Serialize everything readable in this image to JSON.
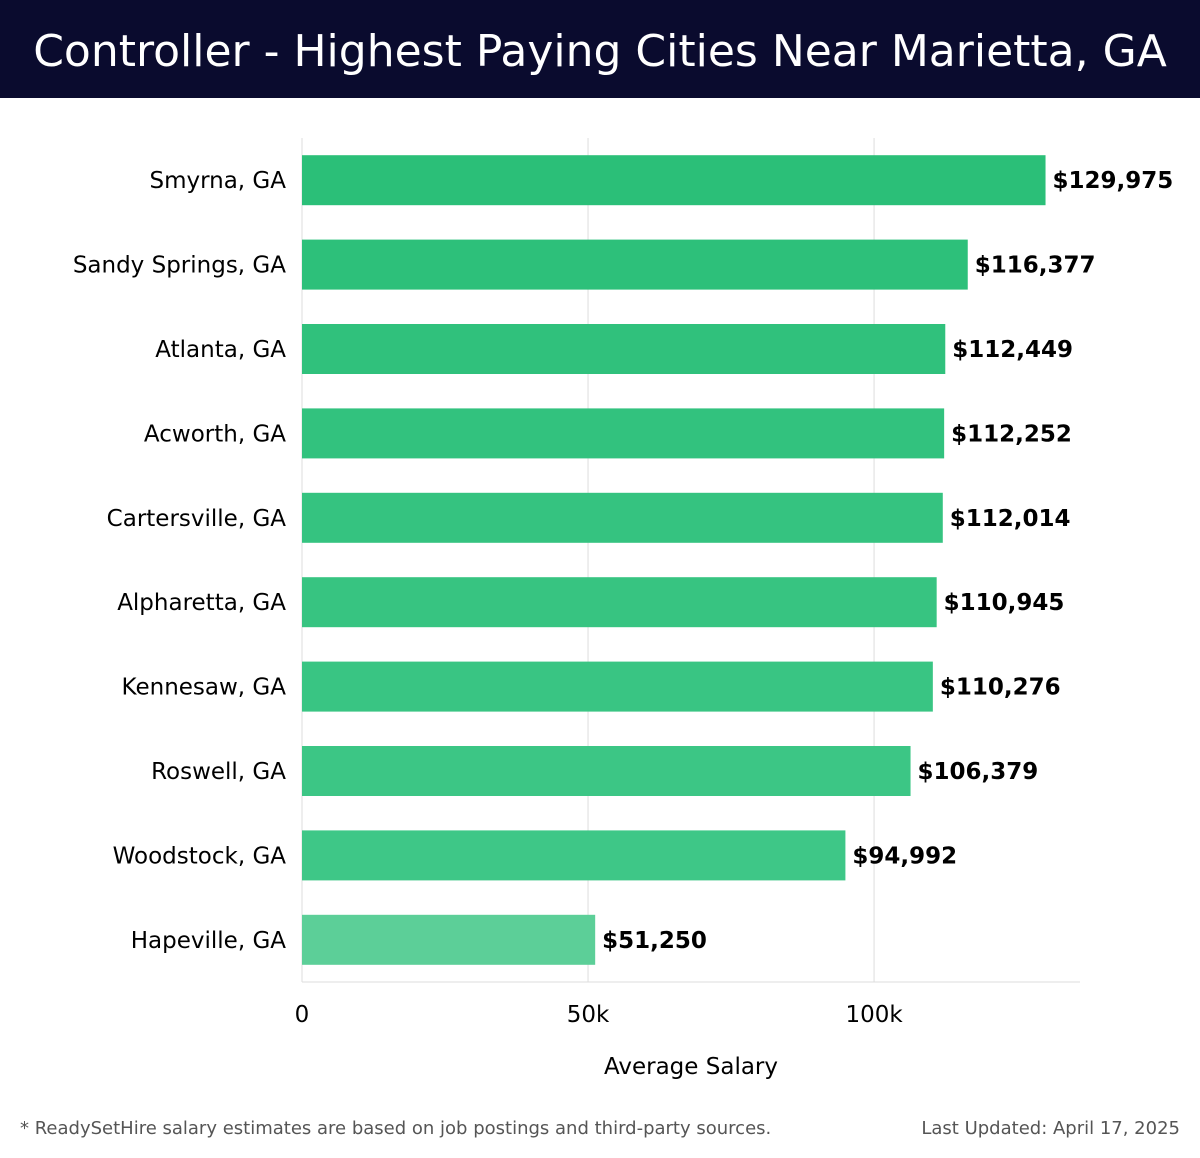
{
  "header": {
    "title": "Controller - Highest Paying Cities Near Marietta, GA"
  },
  "chart_data": {
    "type": "bar",
    "orientation": "horizontal",
    "title": "Controller - Highest Paying Cities Near Marietta, GA",
    "xlabel": "Average Salary",
    "ylabel": "",
    "xlim": [
      0,
      136000
    ],
    "x_ticks": [
      0,
      50000,
      100000
    ],
    "x_tick_labels": [
      "0",
      "50k",
      "100k"
    ],
    "grid": true,
    "categories": [
      "Smyrna, GA",
      "Sandy Springs, GA",
      "Atlanta, GA",
      "Acworth, GA",
      "Cartersville, GA",
      "Alpharetta, GA",
      "Kennesaw, GA",
      "Roswell, GA",
      "Woodstock, GA",
      "Hapeville, GA"
    ],
    "values": [
      129975,
      116377,
      112449,
      112252,
      112014,
      110945,
      110276,
      106379,
      94992,
      51250
    ],
    "value_labels": [
      "$129,975",
      "$116,377",
      "$112,449",
      "$112,252",
      "$112,014",
      "$110,945",
      "$110,276",
      "$106,379",
      "$94,992",
      "$51,250"
    ],
    "colors": {
      "bar_top": "#2bbf78",
      "bar_bottom": "#3ec787",
      "bar_last": "#5ccf98",
      "grid": "#dddddd",
      "text": "#000000"
    }
  },
  "footer": {
    "note": "* ReadySetHire salary estimates are based on job postings and third-party sources.",
    "updated": "Last Updated: April 17, 2025"
  }
}
